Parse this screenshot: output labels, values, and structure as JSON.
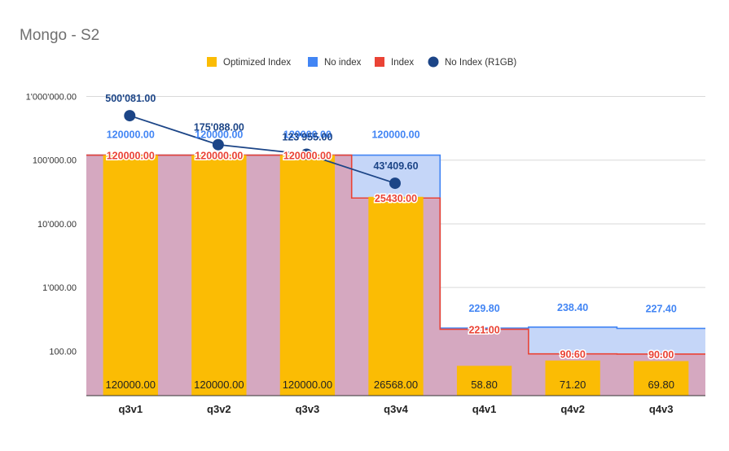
{
  "chart_data": {
    "type": "bar",
    "title": "Mongo - S2",
    "xlabel": "",
    "ylabel": "",
    "yscale": "log",
    "ylim": [
      20,
      2000000
    ],
    "grid": true,
    "legend_position": "top",
    "categories": [
      "q3v1",
      "q3v2",
      "q3v3",
      "q3v4",
      "q4v1",
      "q4v2",
      "q4v3"
    ],
    "yticks": [
      {
        "value": 100,
        "label": "100.00"
      },
      {
        "value": 1000,
        "label": "1'000.00"
      },
      {
        "value": 10000,
        "label": "10'000.00"
      },
      {
        "value": 100000,
        "label": "100'000.00"
      },
      {
        "value": 1000000,
        "label": "1'000'000.00"
      }
    ],
    "series": [
      {
        "name": "Optimized Index",
        "kind": "bar",
        "color": "#fbbc04",
        "values": [
          120000,
          120000,
          120000,
          26568,
          58.8,
          71.2,
          69.8
        ],
        "labels": [
          "120000.00",
          "120000.00",
          "120000.00",
          "26568.00",
          "58.80",
          "71.20",
          "69.80"
        ]
      },
      {
        "name": "No index",
        "kind": "stepped-area",
        "color": "#4285f4",
        "fill": "#c5d6f8",
        "values": [
          120000,
          120000,
          120000,
          120000,
          229.8,
          238.4,
          227.4
        ],
        "labels": [
          "120000.00",
          "120000.00",
          "120000.00",
          "120000.00",
          "229.80",
          "238.40",
          "227.40"
        ]
      },
      {
        "name": "Index",
        "kind": "stepped-area",
        "color": "#ea4335",
        "fill": "#d5a8c0",
        "values": [
          120000,
          120000,
          120000,
          25430,
          221,
          90.6,
          90
        ],
        "labels": [
          "120000.00",
          "120000.00",
          "120000.00",
          "25430.00",
          "221.00",
          "90.60",
          "90.00"
        ]
      },
      {
        "name": "No Index (R1GB)",
        "kind": "line",
        "color": "#1c4587",
        "values": [
          500081,
          175088,
          123955,
          43409.6,
          null,
          null,
          null
        ],
        "labels": [
          "500'081.00",
          "175'088.00",
          "123'955.00",
          "43'409.60",
          "",
          "",
          ""
        ]
      }
    ]
  }
}
